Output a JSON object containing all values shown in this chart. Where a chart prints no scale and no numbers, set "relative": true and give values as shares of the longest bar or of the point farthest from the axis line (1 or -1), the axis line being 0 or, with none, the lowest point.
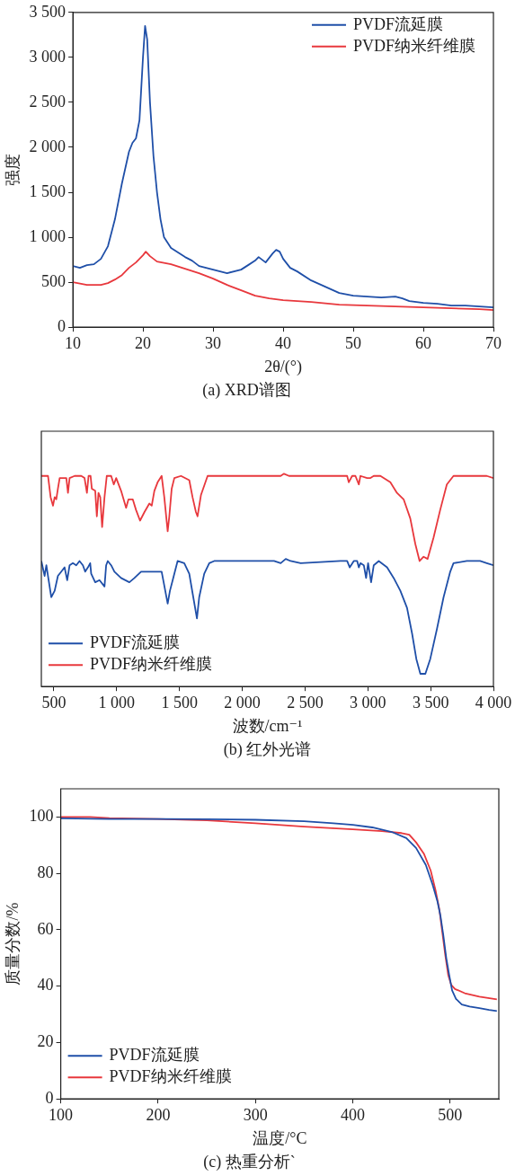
{
  "chart_data": [
    {
      "type": "line",
      "title": "(a) XRD谱图",
      "xlabel": "2θ/(°)",
      "ylabel": "强度",
      "xlim": [
        10,
        70
      ],
      "xticks": [
        10,
        20,
        30,
        40,
        50,
        60,
        70
      ],
      "ylim": [
        0,
        3500
      ],
      "yticks": [
        0,
        500,
        {
          "value": 1000,
          "label": "1 000"
        },
        {
          "value": 1500,
          "label": "1 500"
        },
        {
          "value": 2000,
          "label": "2 000"
        },
        {
          "value": 2500,
          "label": "2 500"
        },
        {
          "value": 3000,
          "label": "3 000"
        },
        {
          "value": 3500,
          "label": "3 500"
        }
      ],
      "grid": false,
      "legend": "top right",
      "series": [
        {
          "name": "PVDF流延膜",
          "color": "#1f4fa8",
          "x": [
            10,
            11,
            12,
            13,
            14,
            15,
            16,
            17,
            18,
            18.5,
            19,
            19.5,
            20,
            20.3,
            20.6,
            21,
            21.5,
            22,
            22.5,
            23,
            24,
            25,
            26,
            27,
            28,
            30,
            32,
            34,
            35,
            36,
            36.5,
            37.5,
            38.5,
            39,
            39.5,
            40,
            41,
            42,
            44,
            46,
            48,
            50,
            52,
            54,
            56,
            57,
            58,
            60,
            62,
            64,
            66,
            68,
            70
          ],
          "values": [
            680,
            660,
            690,
            700,
            760,
            900,
            1200,
            1600,
            1950,
            2050,
            2100,
            2300,
            3000,
            3350,
            3200,
            2500,
            1900,
            1500,
            1200,
            1000,
            880,
            830,
            780,
            740,
            680,
            640,
            600,
            640,
            690,
            740,
            780,
            720,
            820,
            860,
            840,
            760,
            660,
            620,
            520,
            450,
            380,
            350,
            340,
            330,
            340,
            320,
            290,
            270,
            260,
            240,
            240,
            230,
            220
          ]
        },
        {
          "name": "PVDF纳米纤维膜",
          "color": "#e8383d",
          "x": [
            10,
            12,
            14,
            15,
            16,
            17,
            18,
            19,
            20,
            20.4,
            21,
            22,
            24,
            26,
            28,
            30,
            32,
            34,
            36,
            38,
            40,
            44,
            48,
            52,
            56,
            60,
            64,
            68,
            70
          ],
          "values": [
            500,
            470,
            470,
            490,
            530,
            580,
            660,
            720,
            800,
            840,
            790,
            730,
            700,
            650,
            600,
            540,
            470,
            410,
            350,
            320,
            300,
            280,
            250,
            240,
            230,
            220,
            210,
            200,
            190
          ]
        }
      ]
    },
    {
      "type": "line",
      "relative": true,
      "title": "(b) 红外光谱",
      "xlabel": "波数/cm⁻¹",
      "xlim": [
        400,
        4000
      ],
      "xticks": [
        500,
        {
          "value": 1000,
          "label": "1 000"
        },
        {
          "value": 1500,
          "label": "1 500"
        },
        {
          "value": 2000,
          "label": "2 000"
        },
        {
          "value": 2500,
          "label": "2 500"
        },
        {
          "value": 3000,
          "label": "3 000"
        },
        {
          "value": 3500,
          "label": "3 500"
        },
        {
          "value": 4000,
          "label": "4 000"
        }
      ],
      "grid": false,
      "legend": "bottom left",
      "series": [
        {
          "name": "PVDF流延膜",
          "color": "#1f4fa8",
          "x": [
            400,
            426,
            440,
            453,
            479,
            506,
            532,
            559,
            585,
            606,
            625,
            651,
            678,
            704,
            731,
            749,
            771,
            789,
            797,
            829,
            863,
            903,
            916,
            929,
            956,
            982,
            1035,
            1101,
            1141,
            1194,
            1247,
            1300,
            1358,
            1374,
            1406,
            1424,
            1446,
            1485,
            1538,
            1578,
            1604,
            1639,
            1657,
            1697,
            1737,
            1776,
            1988,
            2253,
            2306,
            2346,
            2385,
            2465,
            2782,
            2835,
            2856,
            2888,
            2915,
            2928,
            2941,
            2968,
            2986,
            3002,
            3026,
            3047,
            3087,
            3153,
            3206,
            3259,
            3312,
            3352,
            3386,
            3418,
            3458,
            3497,
            3550,
            3603,
            3656,
            3682,
            3788,
            3894,
            3947,
            4000
          ],
          "values": [
            0.59,
            0.52,
            0.57,
            0.52,
            0.42,
            0.45,
            0.52,
            0.54,
            0.56,
            0.5,
            0.57,
            0.58,
            0.57,
            0.59,
            0.57,
            0.54,
            0.56,
            0.58,
            0.53,
            0.49,
            0.5,
            0.47,
            0.57,
            0.59,
            0.57,
            0.54,
            0.51,
            0.49,
            0.51,
            0.54,
            0.54,
            0.54,
            0.54,
            0.49,
            0.39,
            0.45,
            0.5,
            0.59,
            0.58,
            0.53,
            0.44,
            0.32,
            0.42,
            0.53,
            0.58,
            0.59,
            0.59,
            0.59,
            0.58,
            0.6,
            0.59,
            0.58,
            0.59,
            0.59,
            0.56,
            0.59,
            0.59,
            0.56,
            0.58,
            0.57,
            0.51,
            0.58,
            0.49,
            0.57,
            0.59,
            0.56,
            0.51,
            0.45,
            0.37,
            0.25,
            0.13,
            0.06,
            0.06,
            0.13,
            0.27,
            0.42,
            0.54,
            0.58,
            0.59,
            0.59,
            0.58,
            0.57
          ]
        },
        {
          "name": "PVDF纳米纤维膜",
          "color": "#e8383d",
          "x": [
            400,
            453,
            474,
            493,
            506,
            519,
            532,
            546,
            572,
            599,
            612,
            625,
            665,
            718,
            744,
            763,
            776,
            792,
            802,
            829,
            842,
            855,
            869,
            884,
            903,
            921,
            956,
            977,
            996,
            1035,
            1075,
            1094,
            1128,
            1154,
            1186,
            1221,
            1260,
            1279,
            1300,
            1326,
            1358,
            1379,
            1406,
            1419,
            1438,
            1459,
            1512,
            1578,
            1604,
            1631,
            1644,
            1671,
            1724,
            1988,
            2306,
            2332,
            2372,
            2518,
            2835,
            2848,
            2875,
            2901,
            2928,
            2941,
            2994,
            3021,
            3047,
            3100,
            3179,
            3232,
            3285,
            3338,
            3378,
            3412,
            3444,
            3476,
            3523,
            3576,
            3629,
            3682,
            3841,
            3947,
            4000
          ],
          "values": [
            0.99,
            0.99,
            0.89,
            0.85,
            0.89,
            0.88,
            0.93,
            0.98,
            0.98,
            0.98,
            0.91,
            0.98,
            0.99,
            0.99,
            0.98,
            0.91,
            0.99,
            0.99,
            0.93,
            0.92,
            0.8,
            0.91,
            0.89,
            0.75,
            0.89,
            0.99,
            0.99,
            0.95,
            0.98,
            0.92,
            0.84,
            0.88,
            0.88,
            0.83,
            0.78,
            0.82,
            0.86,
            0.85,
            0.92,
            0.96,
            0.99,
            0.89,
            0.73,
            0.8,
            0.93,
            0.98,
            0.99,
            0.97,
            0.89,
            0.82,
            0.8,
            0.9,
            0.99,
            0.99,
            0.99,
            1.0,
            0.99,
            0.99,
            0.99,
            0.96,
            0.99,
            0.99,
            0.95,
            0.99,
            0.98,
            0.98,
            0.99,
            0.99,
            0.96,
            0.91,
            0.88,
            0.79,
            0.67,
            0.59,
            0.61,
            0.6,
            0.7,
            0.83,
            0.95,
            0.99,
            0.99,
            0.99,
            0.98
          ]
        }
      ]
    },
    {
      "type": "line",
      "title": "(c) 热重分析`",
      "xlabel": "温度/°C",
      "ylabel": "质量分数/%",
      "xlim": [
        100,
        550
      ],
      "xticks": [
        100,
        200,
        300,
        400,
        500
      ],
      "ylim": [
        0,
        110
      ],
      "yticks": [
        0,
        20,
        40,
        60,
        80,
        100
      ],
      "grid": false,
      "legend": "bottom left",
      "series": [
        {
          "name": "PVDF流延膜",
          "color": "#1f4fa8",
          "x": [
            100,
            150,
            200,
            250,
            300,
            350,
            380,
            400,
            420,
            440,
            455,
            465,
            475,
            482,
            487,
            490,
            493,
            496,
            499,
            502,
            506,
            512,
            520,
            530,
            540,
            548
          ],
          "values": [
            99.5,
            99.3,
            99.3,
            99.2,
            99,
            98.5,
            97.8,
            97.2,
            96.3,
            94.7,
            92.5,
            89,
            83,
            76,
            70,
            65,
            58,
            50,
            44,
            38.5,
            35.5,
            33.5,
            32.8,
            32.2,
            31.6,
            31.2
          ]
        },
        {
          "name": "PVDF纳米纤维膜",
          "color": "#e8383d",
          "x": [
            100,
            130,
            150,
            200,
            250,
            300,
            350,
            400,
            430,
            450,
            458,
            465,
            473,
            480,
            485,
            489,
            492,
            495,
            498,
            501,
            505,
            515,
            530,
            548
          ],
          "values": [
            100,
            100,
            99.6,
            99.3,
            98.8,
            97.8,
            96.6,
            95.6,
            95,
            94.3,
            93.7,
            91,
            87,
            81,
            74,
            67,
            59,
            51,
            44,
            40.5,
            39,
            37.5,
            36.3,
            35.3
          ]
        }
      ]
    }
  ]
}
